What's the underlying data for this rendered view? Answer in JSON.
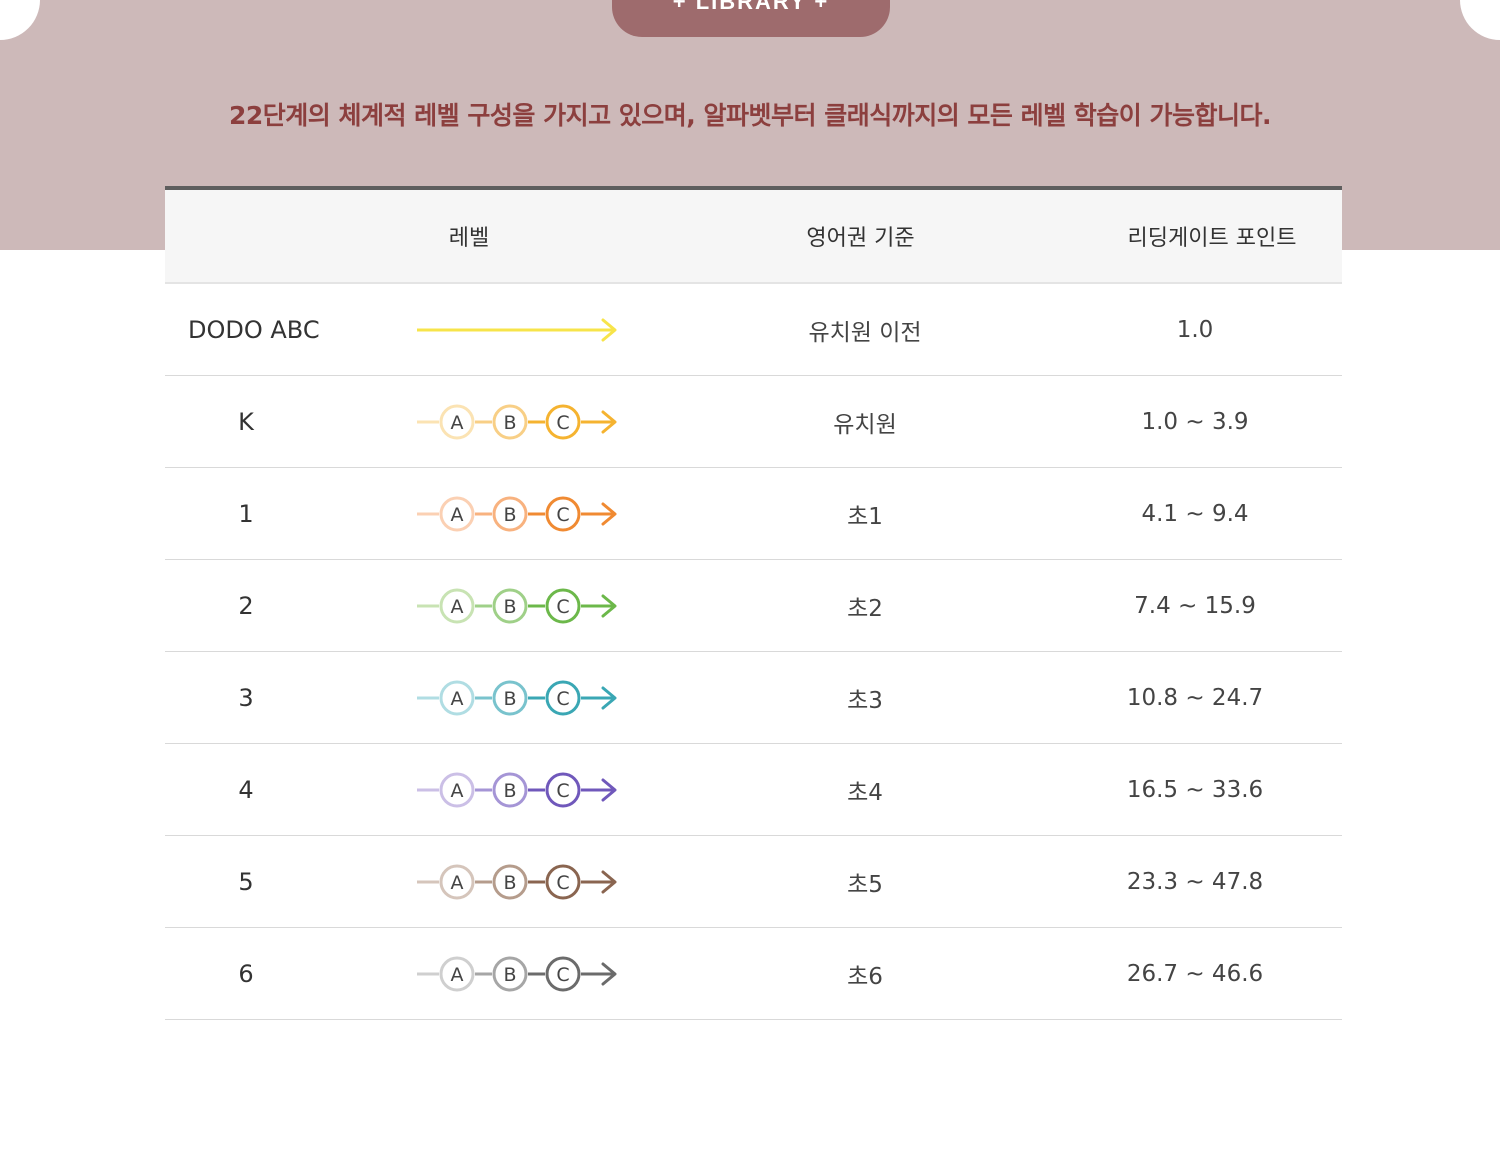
{
  "header": {
    "tab_label": "+ LIBRARY +",
    "intro_text": "22단계의 체계적 레벨 구성을 가지고 있으며, 알파벳부터 클래식까지의 모든 레벨 학습이 가능합니다."
  },
  "table": {
    "columns": [
      "레벨",
      "영어권 기준",
      "리딩게이트 포인트"
    ],
    "rows": [
      {
        "level": "DODO ABC",
        "grade": "유치원 이전",
        "points": "1.0",
        "style": "arrow",
        "colors": [
          "#f7e44a"
        ]
      },
      {
        "level": "K",
        "grade": "유치원",
        "points": "1.0 ~ 3.9",
        "style": "abc",
        "colors": [
          "#fbe3b3",
          "#f8cf86",
          "#f5b330"
        ]
      },
      {
        "level": "1",
        "grade": "초1",
        "points": "4.1 ~ 9.4",
        "style": "abc",
        "colors": [
          "#fbd0b3",
          "#f8b27f",
          "#f08a32"
        ]
      },
      {
        "level": "2",
        "grade": "초2",
        "points": "7.4 ~ 15.9",
        "style": "abc",
        "colors": [
          "#c8e3b3",
          "#9fd088",
          "#6cb84a"
        ]
      },
      {
        "level": "3",
        "grade": "초3",
        "points": "10.8 ~ 24.7",
        "style": "abc",
        "colors": [
          "#b0dde3",
          "#79c3cd",
          "#3aa7b4"
        ]
      },
      {
        "level": "4",
        "grade": "초4",
        "points": "16.5 ~ 33.6",
        "style": "abc",
        "colors": [
          "#cbbfe6",
          "#a595d6",
          "#7058bb"
        ]
      },
      {
        "level": "5",
        "grade": "초5",
        "points": "23.3 ~ 47.8",
        "style": "abc",
        "colors": [
          "#d5c5bb",
          "#b59c8c",
          "#8a6550"
        ]
      },
      {
        "level": "6",
        "grade": "초6",
        "points": "26.7 ~ 46.6",
        "style": "abc",
        "colors": [
          "#cfcfcf",
          "#a6a6a6",
          "#6b6b6b"
        ]
      }
    ],
    "abc_letters": [
      "A",
      "B",
      "C"
    ]
  }
}
